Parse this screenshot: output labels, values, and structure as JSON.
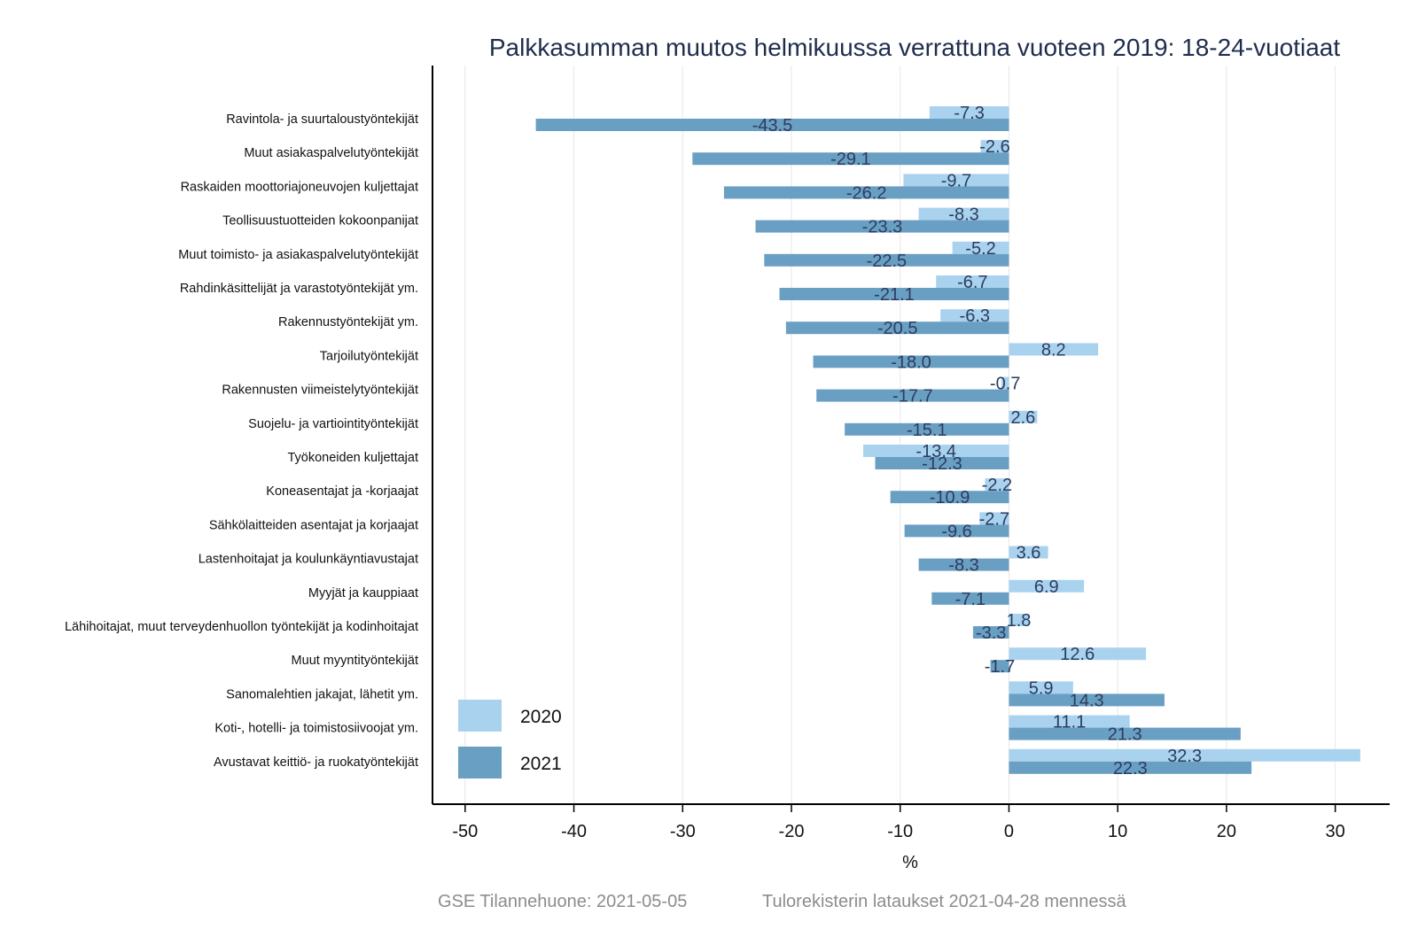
{
  "chart_data": {
    "type": "bar",
    "orientation": "horizontal",
    "title": "Palkkasumman muutos helmikuussa verrattuna vuoteen 2019: 18-24-vuotiaat",
    "xlabel": "%",
    "xlim": [
      -53,
      35
    ],
    "xticks": [
      -50,
      -40,
      -30,
      -20,
      -10,
      0,
      10,
      20,
      30
    ],
    "legend_position": "bottom-left",
    "categories": [
      "Ravintola- ja suurtaloustyöntekijät",
      "Muut asiakaspalvelutyöntekijät",
      "Raskaiden moottoriajoneuvojen kuljettajat",
      "Teollisuustuotteiden kokoonpanijat",
      "Muut toimisto- ja asiakaspalvelutyöntekijät",
      "Rahdinkäsittelijät ja varastotyöntekijät ym.",
      "Rakennustyöntekijät ym.",
      "Tarjoilutyöntekijät",
      "Rakennusten viimeistelytyöntekijät",
      "Suojelu- ja vartiointityöntekijät",
      "Työkoneiden kuljettajat",
      "Koneasentajat ja -korjaajat",
      "Sähkölaitteiden asentajat ja korjaajat",
      "Lastenhoitajat ja koulunkäyntiavustajat",
      "Myyjät ja kauppiaat",
      "Lähihoitajat, muut terveydenhuollon työntekijät ja kodinhoitajat",
      "Muut myyntityöntekijät",
      "Sanomalehtien jakajat, lähetit ym.",
      "Koti-, hotelli- ja toimistosiivoojat ym.",
      "Avustavat keittiö- ja ruokatyöntekijät"
    ],
    "series": [
      {
        "name": "2020",
        "color": "#a9d2ef",
        "values": [
          -7.3,
          -2.6,
          -9.7,
          -8.3,
          -5.2,
          -6.7,
          -6.3,
          8.2,
          -0.7,
          2.6,
          -13.4,
          -2.2,
          -2.7,
          3.6,
          6.9,
          1.8,
          12.6,
          5.9,
          11.1,
          32.3
        ],
        "labels": [
          "-7.3",
          "-2.6",
          "-9.7",
          "-8.3",
          "-5.2",
          "-6.7",
          "-6.3",
          "8.2",
          "-0.7",
          "2.6",
          "-13.4",
          "-2.2",
          "-2.7",
          "3.6",
          "6.9",
          "1.8",
          "12.6",
          "5.9",
          "11.1",
          "32.3"
        ]
      },
      {
        "name": "2021",
        "color": "#6a9fc4",
        "values": [
          -43.5,
          -29.1,
          -26.2,
          -23.3,
          -22.5,
          -21.1,
          -20.5,
          -18.0,
          -17.7,
          -15.1,
          -12.3,
          -10.9,
          -9.6,
          -8.3,
          -7.1,
          -3.3,
          -1.7,
          14.3,
          21.3,
          22.3
        ],
        "labels": [
          "-43.5",
          "-29.1",
          "-26.2",
          "-23.3",
          "-22.5",
          "-21.1",
          "-20.5",
          "-18.0",
          "-17.7",
          "-15.1",
          "-12.3",
          "-10.9",
          "-9.6",
          "-8.3",
          "-7.1",
          "-3.3",
          "-1.7",
          "14.3",
          "21.3",
          "22.3"
        ]
      }
    ]
  },
  "footer": {
    "left": "GSE Tilannehuone: 2021-05-05",
    "right": "Tulorekisterin lataukset 2021-04-28 mennessä"
  }
}
